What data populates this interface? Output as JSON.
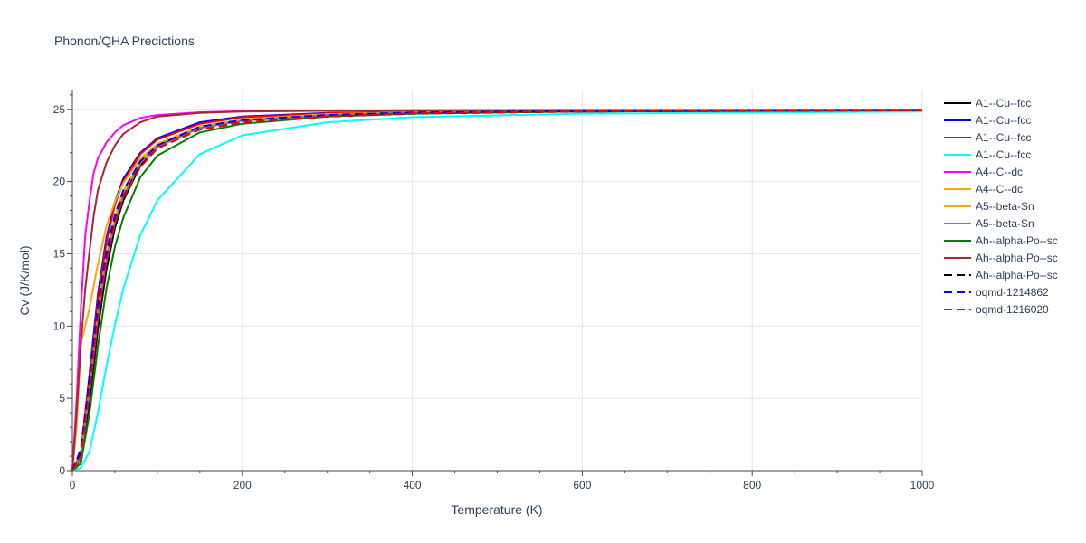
{
  "chart_data": {
    "type": "line",
    "title": "Phonon/QHA Predictions",
    "xlabel": "Temperature (K)",
    "ylabel": "Cv (J/K/mol)",
    "xlim": [
      0,
      1000
    ],
    "ylim": [
      0,
      26.3
    ],
    "xticks": [
      0,
      200,
      400,
      600,
      800,
      1000
    ],
    "yticks": [
      0,
      5,
      10,
      15,
      20,
      25
    ],
    "grid": true,
    "legend_position": "right",
    "series": [
      {
        "name": "A1--Cu--fcc",
        "color": "#000000",
        "dash": "solid",
        "x": [
          0,
          10,
          20,
          30,
          40,
          50,
          60,
          80,
          100,
          150,
          200,
          300,
          400,
          600,
          1000
        ],
        "y": [
          0,
          0.8,
          4.7,
          9.8,
          13.9,
          16.8,
          18.7,
          21.1,
          22.5,
          23.8,
          24.3,
          24.6,
          24.75,
          24.85,
          24.94
        ]
      },
      {
        "name": "A1--Cu--fcc",
        "color": "#0000ff",
        "dash": "solid",
        "x": [
          0,
          10,
          20,
          30,
          40,
          50,
          60,
          80,
          100,
          150,
          200,
          300,
          400,
          600,
          1000
        ],
        "y": [
          0,
          1.2,
          6.6,
          12.2,
          16.1,
          18.6,
          20.2,
          22.0,
          23.0,
          24.1,
          24.5,
          24.75,
          24.85,
          24.9,
          24.95
        ]
      },
      {
        "name": "A1--Cu--fcc",
        "color": "#ff0000",
        "dash": "solid",
        "x": [
          0,
          10,
          20,
          30,
          40,
          50,
          60,
          80,
          100,
          150,
          200,
          300,
          400,
          600,
          1000
        ],
        "y": [
          0,
          1.1,
          6.3,
          11.8,
          15.8,
          18.4,
          20.0,
          21.9,
          22.9,
          24.0,
          24.45,
          24.72,
          24.84,
          24.9,
          24.95
        ]
      },
      {
        "name": "A1--Cu--fcc",
        "color": "#00ffff",
        "dash": "solid",
        "x": [
          0,
          10,
          20,
          30,
          40,
          50,
          60,
          80,
          100,
          150,
          200,
          300,
          400,
          600,
          1000
        ],
        "y": [
          0,
          0.2,
          1.3,
          4.0,
          7.2,
          10.1,
          12.6,
          16.3,
          18.7,
          21.9,
          23.2,
          24.1,
          24.45,
          24.7,
          24.85
        ]
      },
      {
        "name": "A4--C--dc",
        "color": "#ff00ff",
        "dash": "solid",
        "x": [
          0,
          5,
          10,
          15,
          20,
          25,
          30,
          40,
          50,
          60,
          80,
          100,
          150,
          200,
          300,
          400,
          600,
          1000
        ],
        "y": [
          0,
          5.0,
          11.2,
          16.2,
          18.6,
          20.6,
          21.6,
          22.7,
          23.4,
          23.9,
          24.4,
          24.6,
          24.8,
          24.87,
          24.92,
          24.94,
          24.96,
          24.97
        ]
      },
      {
        "name": "A4--C--dc",
        "color": "#ffa500",
        "dash": "solid",
        "x": [
          0,
          5,
          10,
          20,
          30,
          40,
          50,
          60,
          80,
          100,
          150,
          200,
          300,
          400,
          600,
          1000
        ],
        "y": [
          0,
          3.0,
          8.8,
          11.2,
          14.3,
          16.9,
          18.6,
          19.9,
          21.6,
          22.6,
          23.8,
          24.3,
          24.65,
          24.8,
          24.88,
          24.94
        ]
      },
      {
        "name": "A5--beta-Sn",
        "color": "#ffa500",
        "dash": "solid",
        "x": [
          0,
          10,
          20,
          30,
          40,
          50,
          60,
          80,
          100,
          150,
          200,
          300,
          400,
          600,
          1000
        ],
        "y": [
          0,
          1.0,
          5.6,
          10.9,
          14.9,
          17.5,
          19.3,
          21.4,
          22.6,
          23.8,
          24.3,
          24.65,
          24.8,
          24.88,
          24.94
        ]
      },
      {
        "name": "A5--beta-Sn",
        "color": "#808080",
        "dash": "solid",
        "x": [
          0,
          10,
          20,
          30,
          40,
          50,
          60,
          80,
          100,
          150,
          200,
          300,
          400,
          600,
          1000
        ],
        "y": [
          0,
          0.9,
          5.4,
          10.6,
          14.6,
          17.2,
          19.0,
          21.2,
          22.4,
          23.7,
          24.2,
          24.6,
          24.78,
          24.87,
          24.94
        ]
      },
      {
        "name": "Ah--alpha-Po--sc",
        "color": "#008000",
        "dash": "solid",
        "x": [
          0,
          10,
          20,
          30,
          40,
          50,
          60,
          80,
          100,
          150,
          200,
          300,
          400,
          600,
          1000
        ],
        "y": [
          0,
          0.5,
          3.9,
          8.6,
          12.6,
          15.5,
          17.5,
          20.3,
          21.8,
          23.4,
          24.0,
          24.5,
          24.7,
          24.85,
          24.93
        ]
      },
      {
        "name": "Ah--alpha-Po--sc",
        "color": "#a52a2a",
        "dash": "solid",
        "x": [
          0,
          5,
          10,
          15,
          20,
          25,
          30,
          40,
          50,
          60,
          80,
          100,
          150,
          200,
          300,
          400,
          600,
          1000
        ],
        "y": [
          0,
          4.0,
          8.8,
          12.5,
          15.1,
          17.6,
          19.4,
          21.3,
          22.5,
          23.3,
          24.1,
          24.5,
          24.75,
          24.85,
          24.9,
          24.93,
          24.95,
          24.97
        ]
      },
      {
        "name": "Ah--alpha-Po--sc",
        "color": "#000000",
        "dash": "dash",
        "x": [
          0,
          10,
          20,
          30,
          40,
          50,
          60,
          80,
          100,
          150,
          200,
          300,
          400,
          600,
          1000
        ],
        "y": [
          0,
          1.2,
          5.8,
          10.8,
          14.7,
          17.3,
          19.0,
          21.1,
          22.3,
          23.6,
          24.1,
          24.5,
          24.7,
          24.85,
          24.93
        ]
      },
      {
        "name": "oqmd-1214862",
        "color": "#0000ff",
        "dash": "dash",
        "x": [
          0,
          10,
          20,
          30,
          40,
          50,
          60,
          80,
          100,
          150,
          200,
          300,
          400,
          600,
          1000
        ],
        "y": [
          0,
          1.5,
          6.4,
          11.4,
          15.2,
          17.7,
          19.4,
          21.4,
          22.5,
          23.8,
          24.25,
          24.6,
          24.78,
          24.88,
          24.94
        ]
      },
      {
        "name": "oqmd-1216020",
        "color": "#ff0000",
        "dash": "dash",
        "x": [
          0,
          10,
          20,
          30,
          40,
          50,
          60,
          80,
          100,
          150,
          200,
          300,
          400,
          600,
          1000
        ],
        "y": [
          0,
          1.0,
          5.4,
          10.5,
          14.5,
          17.1,
          18.9,
          21.0,
          22.3,
          23.6,
          24.1,
          24.5,
          24.72,
          24.86,
          24.93
        ]
      }
    ]
  }
}
